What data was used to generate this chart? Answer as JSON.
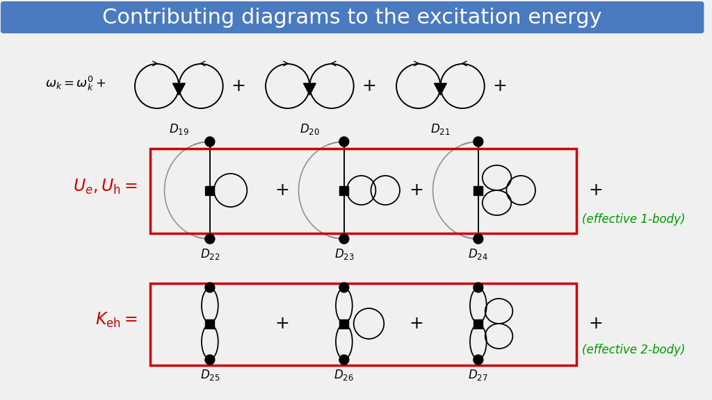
{
  "title": "Contributing diagrams to the excitation energy",
  "title_bg": "#4a7abf",
  "title_color": "white",
  "title_fontsize": 22,
  "bg_color": "#f0f0f0",
  "red_color": "#cc0000",
  "green_color": "#009900",
  "diag_labels_row1": [
    "19",
    "20",
    "21"
  ],
  "diag_labels_row2": [
    "22",
    "23",
    "24"
  ],
  "diag_labels_row3": [
    "25",
    "26",
    "27"
  ],
  "eff1body_text": "(effective 1-body)",
  "eff2body_text": "(effective 2-body)"
}
